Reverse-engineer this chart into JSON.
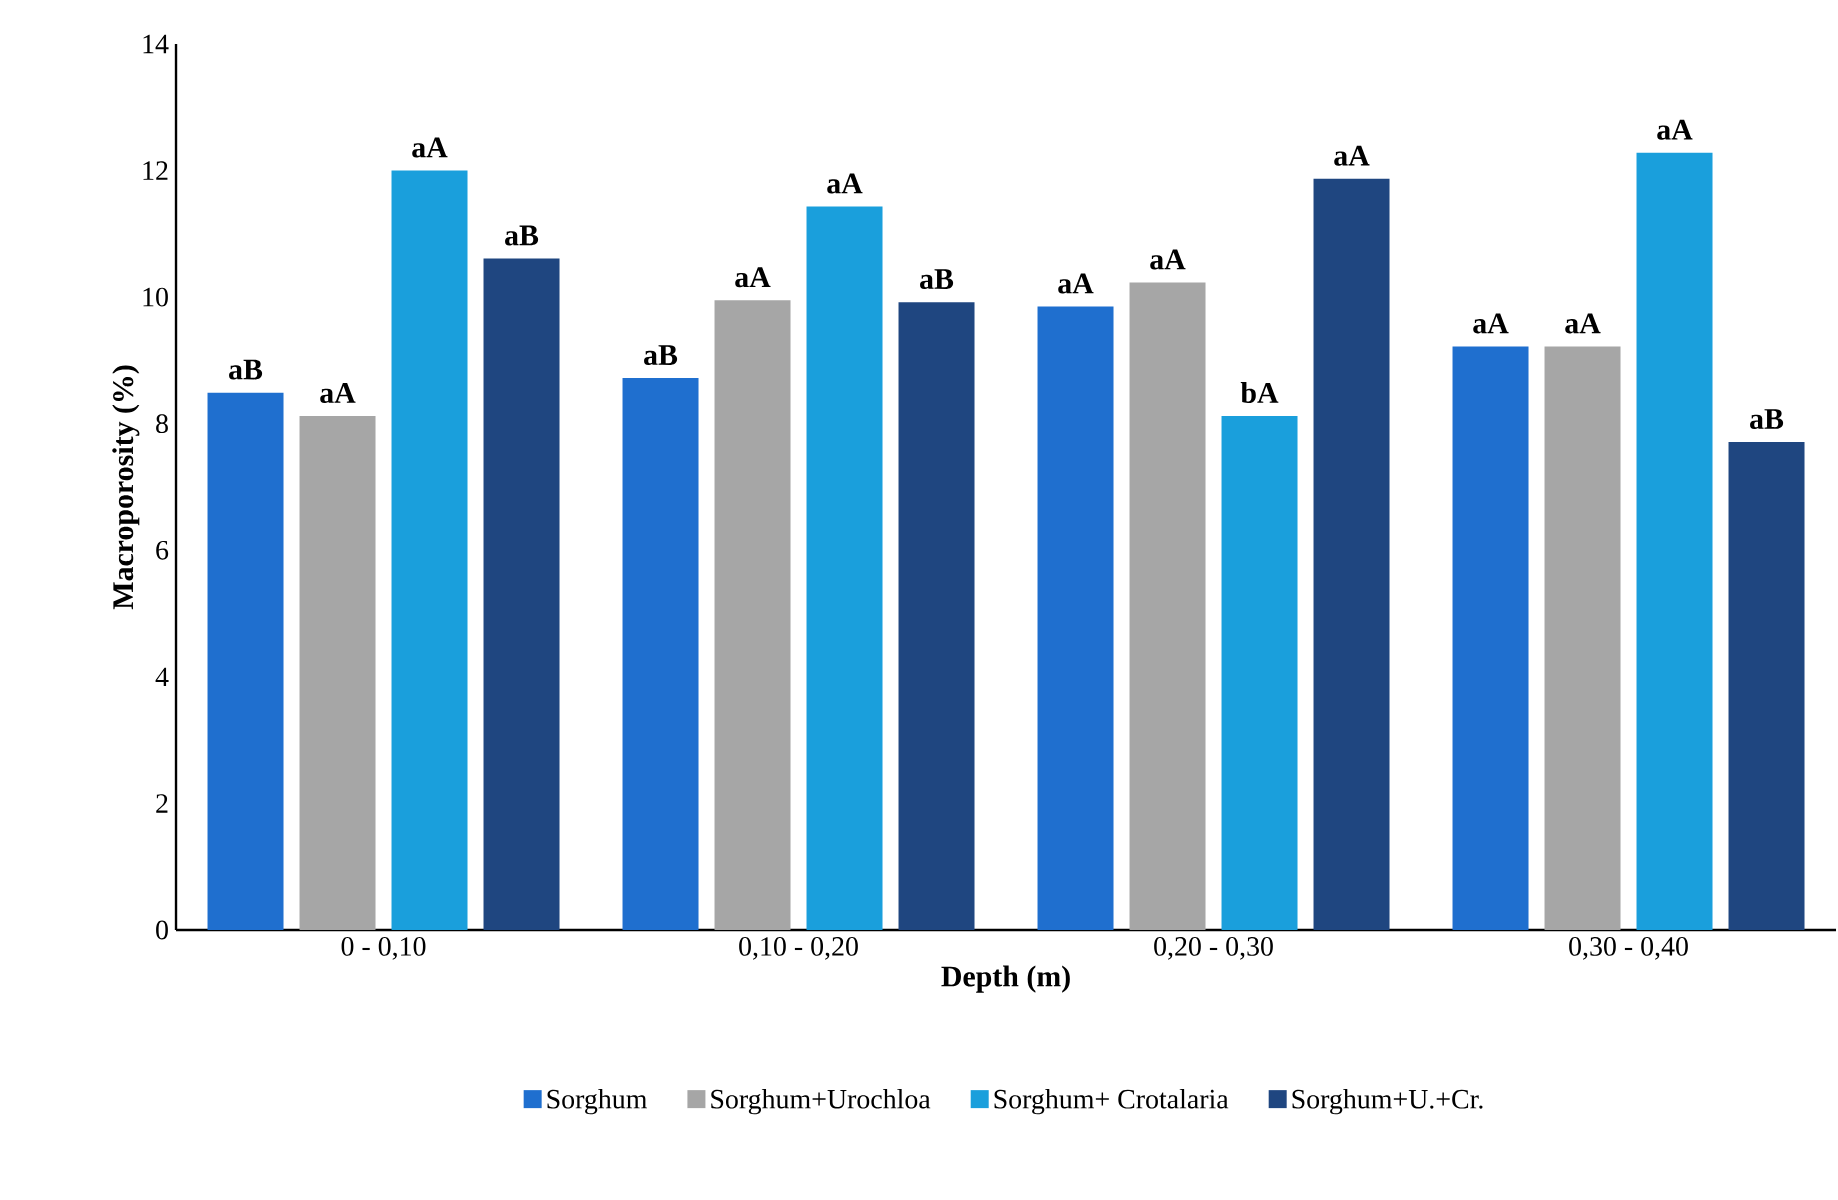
{
  "chart_data": {
    "type": "bar",
    "xlabel": "Depth (m)",
    "ylabel": "Macroporosity (%)",
    "categories": [
      "0 - 0,10",
      "0,10 - 0,20",
      "0,20 - 0,30",
      "0,30 - 0,40"
    ],
    "series": [
      {
        "name": "Sorghum",
        "color": "#1f6fcf",
        "values": [
          8.49,
          8.72,
          9.85,
          9.22
        ],
        "value_labels": [
          "aB",
          "aB",
          "aA",
          "aA"
        ]
      },
      {
        "name": "Sorghum+Urochloa",
        "color": "#a6a6a6",
        "values": [
          8.12,
          9.95,
          10.23,
          9.22
        ],
        "value_labels": [
          "aA",
          "aA",
          "aA",
          "aA"
        ]
      },
      {
        "name": "Sorghum+ Crotalaria",
        "color": "#1a9fdc",
        "values": [
          12.0,
          11.43,
          8.12,
          12.28
        ],
        "value_labels": [
          "aA",
          "aA",
          "bA",
          "aA"
        ]
      },
      {
        "name": "Sorghum+U.+Cr.",
        "color": "#1f4680",
        "values": [
          10.61,
          9.92,
          11.87,
          7.71
        ],
        "value_labels": [
          "aB",
          "aB",
          "aA",
          "aB"
        ]
      }
    ],
    "ylim": [
      0,
      14
    ],
    "yticks": [
      0,
      2,
      4,
      6,
      8,
      10,
      12,
      14
    ],
    "grid": false,
    "legend": "bottom"
  }
}
